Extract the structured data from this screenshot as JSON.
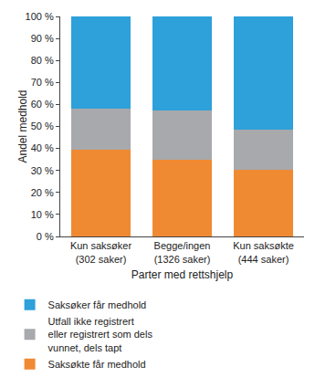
{
  "chart_data": {
    "type": "bar",
    "stacked": true,
    "x_label": "Parter med rettshjelp",
    "y_label": "Andel medhold",
    "categories": [
      "Kun saksøker\n(302 saker)",
      "Begge/ingen\n(1326 saker)",
      "Kun saksøkte\n(444 saker)"
    ],
    "series": [
      {
        "name": "Saksøkte får medhold",
        "color": "#f08a32",
        "values": [
          39.5,
          35,
          30.5
        ]
      },
      {
        "name": "Utfall ikke registrert\neller registrert som dels\nvunnet, dels tapt",
        "color": "#a7a9ac",
        "values": [
          18.8,
          22.3,
          18
        ]
      },
      {
        "name": "Saksøker får medhold",
        "color": "#2ea0da",
        "values": [
          41.7,
          42.7,
          51.5
        ]
      }
    ],
    "ylim": [
      0,
      100
    ],
    "yticks": [
      {
        "value": 0,
        "label": "0 %"
      },
      {
        "value": 10,
        "label": "10 %"
      },
      {
        "value": 20,
        "label": "20 %"
      },
      {
        "value": 30,
        "label": "30 %"
      },
      {
        "value": 40,
        "label": "40 %"
      },
      {
        "value": 50,
        "label": "50 %"
      },
      {
        "value": 60,
        "label": "60 %"
      },
      {
        "value": 70,
        "label": "70 %"
      },
      {
        "value": 80,
        "label": "80 %"
      },
      {
        "value": 90,
        "label": "90 %"
      },
      {
        "value": 100,
        "label": "100 %"
      }
    ],
    "grid": false,
    "legend": "bottom"
  }
}
